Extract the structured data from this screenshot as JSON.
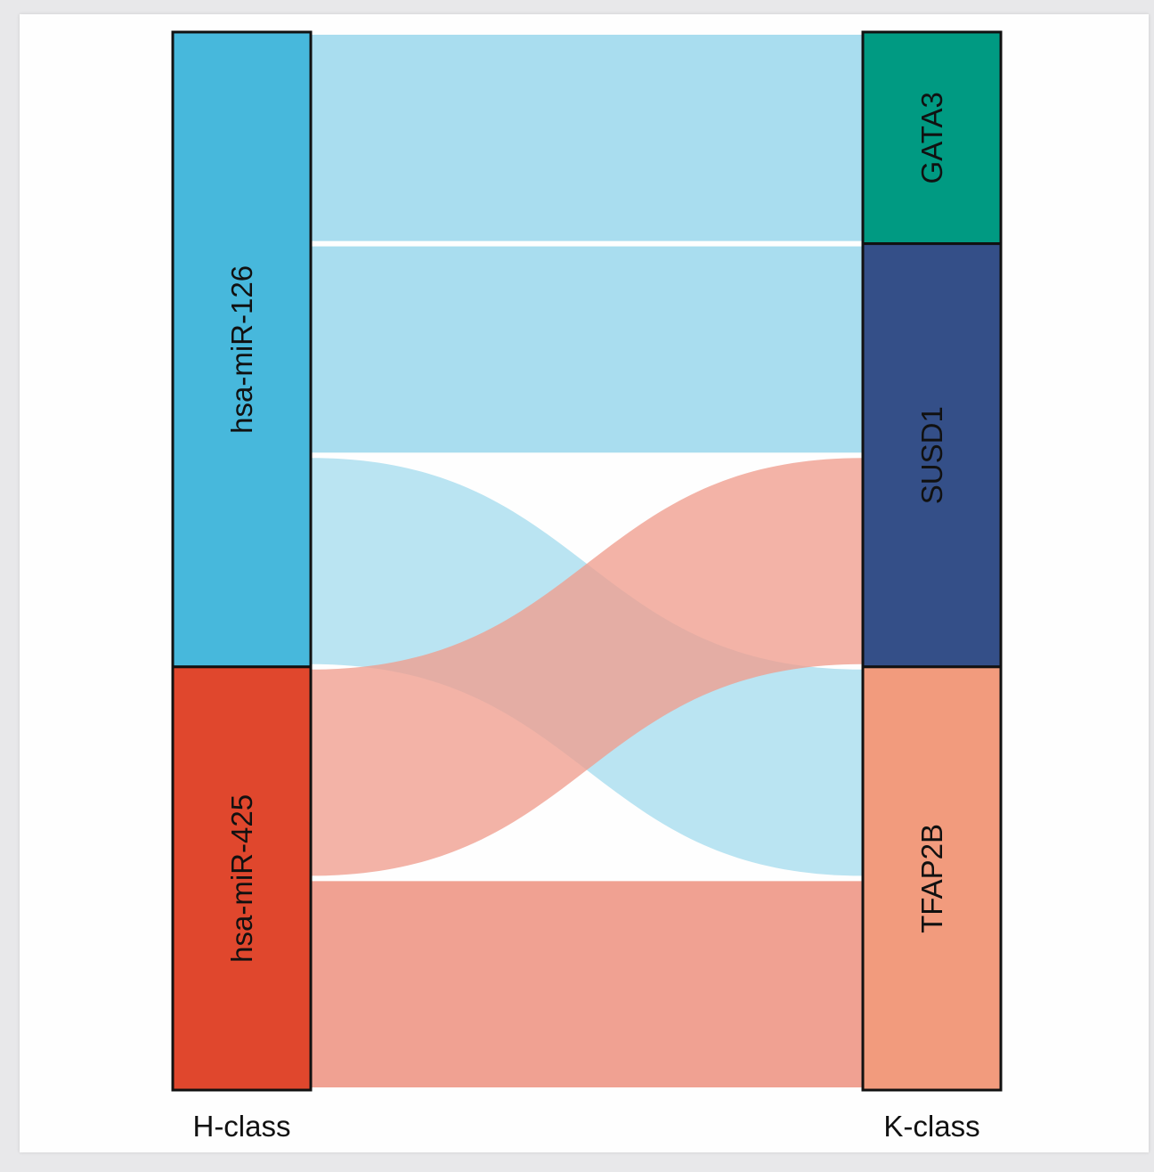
{
  "chart_data": {
    "type": "sankey",
    "title": "",
    "axes": [
      {
        "name": "H-class",
        "nodes": [
          "hsa-miR-126",
          "hsa-miR-425"
        ]
      },
      {
        "name": "K-class",
        "nodes": [
          "GATA3",
          "SUSD1",
          "TFAP2B"
        ]
      }
    ],
    "links": [
      {
        "source": "hsa-miR-126",
        "target": "GATA3",
        "value": 1,
        "color": "#a6dcee"
      },
      {
        "source": "hsa-miR-126",
        "target": "SUSD1",
        "value": 1,
        "color": "#a6dcee"
      },
      {
        "source": "hsa-miR-126",
        "target": "TFAP2B",
        "value": 1,
        "color": "#a6dcee"
      },
      {
        "source": "hsa-miR-425",
        "target": "SUSD1",
        "value": 1,
        "color": "#ef9d8e"
      },
      {
        "source": "hsa-miR-425",
        "target": "TFAP2B",
        "value": 1,
        "color": "#ef9d8e"
      }
    ],
    "node_colors": {
      "hsa-miR-126": "#47b8dc",
      "hsa-miR-425": "#e0472d",
      "GATA3": "#009a82",
      "SUSD1": "#344f88",
      "TFAP2B": "#f29b7d"
    }
  }
}
